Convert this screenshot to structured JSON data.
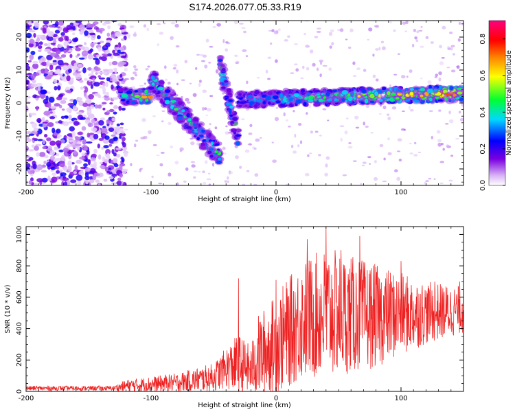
{
  "title": "S174.2026.077.05.33.R19",
  "chart_data": [
    {
      "type": "heatmap",
      "name": "spectrogram",
      "xlabel": "Height of straight line (km)",
      "ylabel": "Frequency (Hz)",
      "xlim": [
        -200,
        150
      ],
      "ylim": [
        -25,
        25
      ],
      "xticks": [
        -200,
        -100,
        0,
        100
      ],
      "yticks": [
        -20,
        -10,
        0,
        10,
        20
      ],
      "colorbar": {
        "label": "Normalized spectral amplitude",
        "range": [
          0.0,
          0.9
        ],
        "ticks": [
          0.0,
          0.2,
          0.4,
          0.6,
          0.8
        ],
        "colormap": [
          "#ffffff",
          "#d9b3f5",
          "#7a00e0",
          "#0000ff",
          "#00d8ff",
          "#00ff30",
          "#ffff00",
          "#ff8000",
          "#ff0000",
          "#ff0080"
        ]
      },
      "features": [
        {
          "segment": "noise",
          "x_range": [
            -200,
            -125
          ],
          "freq_range": [
            -25,
            25
          ],
          "amplitude": "low (0.05-0.2)"
        },
        {
          "segment": "signal",
          "x_range": [
            -125,
            -100
          ],
          "freq": 2,
          "amplitude": "0.3-0.5"
        },
        {
          "segment": "streak",
          "x_range": [
            -100,
            -45
          ],
          "freq_start": 7,
          "freq_end": -16
        },
        {
          "segment": "streak",
          "x_range": [
            -45,
            -30
          ],
          "freq_start": 12,
          "freq_end": -11
        },
        {
          "segment": "signal",
          "x_range": [
            -30,
            150
          ],
          "freq_start": 1,
          "freq_end": 3,
          "amplitude": "0.4-0.9"
        }
      ]
    },
    {
      "type": "line",
      "name": "snr",
      "xlabel": "Height of straight line (km)",
      "ylabel": "SNR (10 * v/v)",
      "xlim": [
        -200,
        150
      ],
      "ylim": [
        0,
        1050
      ],
      "xticks": [
        -200,
        -100,
        0,
        100
      ],
      "yticks": [
        0,
        200,
        400,
        600,
        800,
        1000
      ],
      "color": "#ee2222",
      "envelope": [
        {
          "x": -200,
          "base": 20,
          "spread": 15
        },
        {
          "x": -130,
          "base": 20,
          "spread": 15
        },
        {
          "x": -120,
          "base": 35,
          "spread": 40
        },
        {
          "x": -80,
          "base": 55,
          "spread": 60
        },
        {
          "x": -50,
          "base": 90,
          "spread": 90
        },
        {
          "x": -40,
          "base": 150,
          "spread": 130
        },
        {
          "x": -30,
          "base": 170,
          "spread": 200
        },
        {
          "x": -20,
          "base": 140,
          "spread": 150
        },
        {
          "x": -15,
          "base": 220,
          "spread": 260
        },
        {
          "x": 0,
          "base": 300,
          "spread": 320
        },
        {
          "x": 20,
          "base": 450,
          "spread": 380
        },
        {
          "x": 40,
          "base": 500,
          "spread": 420
        },
        {
          "x": 80,
          "base": 480,
          "spread": 330
        },
        {
          "x": 120,
          "base": 500,
          "spread": 200
        },
        {
          "x": 150,
          "base": 520,
          "spread": 150
        }
      ],
      "peaks": [
        {
          "x": -30,
          "y": 720
        },
        {
          "x": 0,
          "y": 710
        },
        {
          "x": 25,
          "y": 970
        },
        {
          "x": 40,
          "y": 1050
        },
        {
          "x": 52,
          "y": 900
        },
        {
          "x": 67,
          "y": 990
        },
        {
          "x": 100,
          "y": 830
        },
        {
          "x": 127,
          "y": 700
        },
        {
          "x": 147,
          "y": 700
        }
      ]
    }
  ]
}
